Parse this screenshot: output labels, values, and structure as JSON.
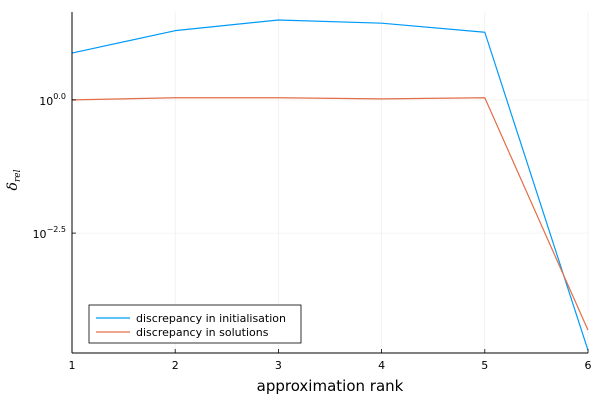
{
  "chart_data": {
    "type": "line",
    "title": "",
    "xlabel": "approximation rank",
    "ylabel_base": "δ",
    "ylabel_sub": "rel",
    "x": [
      1,
      2,
      3,
      4,
      5,
      6
    ],
    "xlim": [
      1,
      6
    ],
    "x_ticks": [
      1,
      2,
      3,
      4,
      5,
      6
    ],
    "y_scale": "log10",
    "ylim_exponent": [
      -4.75,
      1.65
    ],
    "y_ticks": [
      {
        "exponent": 0,
        "base": "10",
        "exp_label": "0.0"
      },
      {
        "exponent": -2.5,
        "base": "10",
        "exp_label": "−2.5"
      }
    ],
    "grid": true,
    "legend_position": "bottom-left",
    "series": [
      {
        "name": "discrepancy in initialisation",
        "color": "#009af9",
        "log10_values": [
          0.88,
          1.3,
          1.5,
          1.44,
          1.27,
          -4.7
        ]
      },
      {
        "name": "discrepancy in solutions",
        "color": "#e26f46",
        "log10_values": [
          0.0,
          0.04,
          0.04,
          0.02,
          0.04,
          -4.32
        ]
      }
    ]
  }
}
